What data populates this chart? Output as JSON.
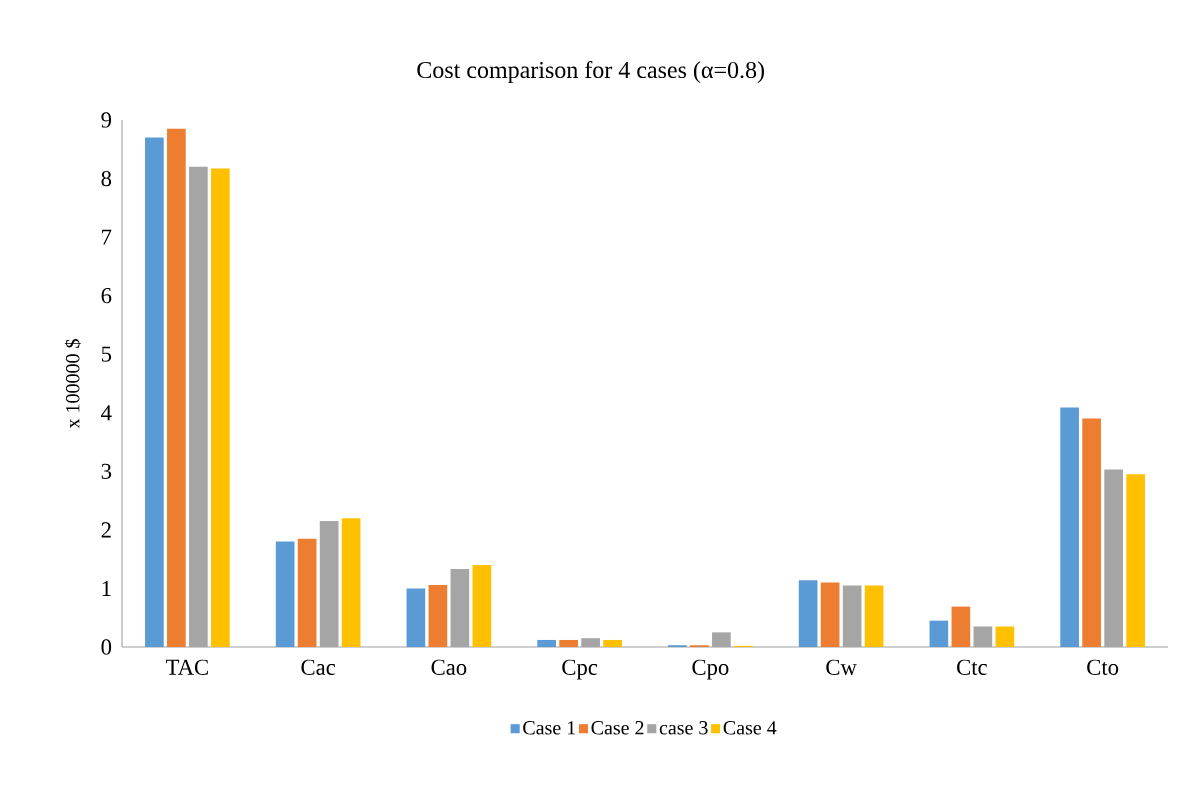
{
  "chart_data": {
    "type": "bar",
    "title": "Cost comparison for 4 cases (α=0.8)",
    "ylabel": "x 100000 $",
    "categories": [
      "TAC",
      "Cac",
      "Cao",
      "Cpc",
      "Cpo",
      "Cw",
      "Ctc",
      "Cto"
    ],
    "series": [
      {
        "name": "Case 1",
        "color": "#5b9bd5",
        "values": [
          8.7,
          1.8,
          1.0,
          0.12,
          0.03,
          1.14,
          0.45,
          4.09
        ]
      },
      {
        "name": "Case 2",
        "color": "#ed7d31",
        "values": [
          8.85,
          1.85,
          1.06,
          0.12,
          0.03,
          1.1,
          0.69,
          3.9
        ]
      },
      {
        "name": "case 3",
        "color": "#a5a5a5",
        "values": [
          8.2,
          2.15,
          1.33,
          0.15,
          0.25,
          1.05,
          0.35,
          3.03
        ]
      },
      {
        "name": "Case 4",
        "color": "#ffc000",
        "values": [
          8.17,
          2.2,
          1.4,
          0.12,
          0.02,
          1.05,
          0.35,
          2.95
        ]
      }
    ],
    "ylim": [
      0,
      9
    ],
    "yticks": [
      0,
      1,
      2,
      3,
      4,
      5,
      6,
      7,
      8,
      9
    ],
    "grid": false,
    "legend": "bottom"
  }
}
